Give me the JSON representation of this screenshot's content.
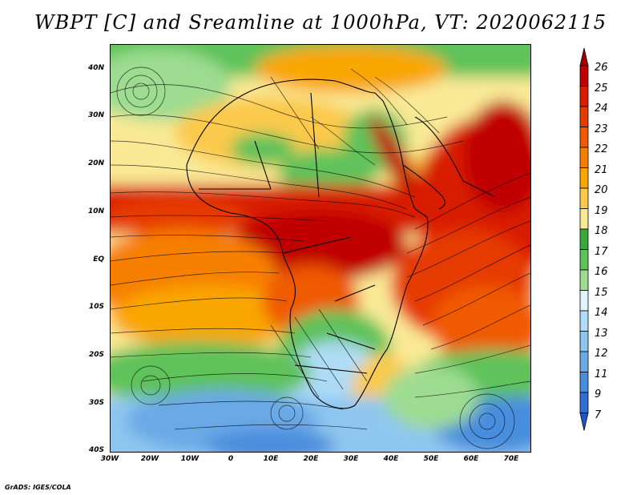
{
  "title": "WBPT [C] and Sreamline at 1000hPa, VT: 2020062115",
  "credit": "GrADS: IGES/COLA",
  "map": {
    "lat_ticks": [
      "40N",
      "30N",
      "20N",
      "10N",
      "EQ",
      "10S",
      "20S",
      "30S",
      "40S"
    ],
    "lon_ticks": [
      "30W",
      "20W",
      "10W",
      "0",
      "10E",
      "20E",
      "30E",
      "40E",
      "50E",
      "60E",
      "70E"
    ]
  },
  "colorbar": {
    "levels": [
      "26",
      "25",
      "24",
      "23",
      "22",
      "21",
      "20",
      "19",
      "18",
      "17",
      "16",
      "15",
      "14",
      "13",
      "12",
      "11",
      "9",
      "7"
    ],
    "colors": [
      "#a50000",
      "#c00000",
      "#d81d00",
      "#e63b00",
      "#f05a00",
      "#f77f00",
      "#f9a600",
      "#fbc94c",
      "#f9e995",
      "#3aa93c",
      "#5ec25a",
      "#9ddc91",
      "#e0f7fa",
      "#aedcf7",
      "#8ec6f0",
      "#6aa9e6",
      "#4a8ddd",
      "#2f6fd3",
      "#1e56c8"
    ]
  }
}
